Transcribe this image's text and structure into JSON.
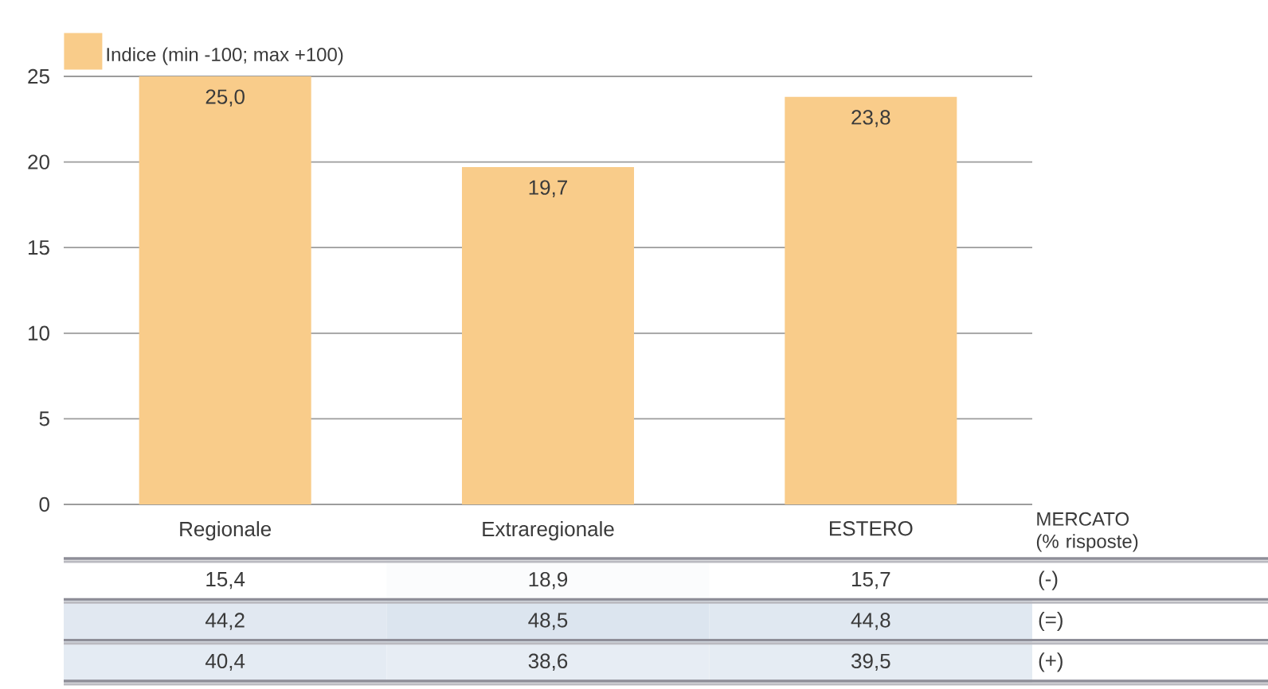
{
  "chart_data": [
    {
      "type": "bar",
      "categories": [
        "Regionale",
        "Extraregionale",
        "ESTERO"
      ],
      "series": [
        {
          "name": "Indice (min -100; max +100)",
          "color": "#f9cc8a",
          "values": [
            25.0,
            19.7,
            23.8
          ],
          "value_labels": [
            "25,0",
            "19,7",
            "23,8"
          ]
        }
      ],
      "ylim": [
        0,
        25
      ],
      "yticks": [
        0,
        5,
        10,
        15,
        20,
        25
      ],
      "grid": "y",
      "legend": "top left"
    },
    {
      "type": "heatmap",
      "ylabel": "MERCATO (% risposte)",
      "categories": [
        null,
        null,
        null
      ],
      "y_categories": [
        "(-)",
        "(=)",
        "(+)"
      ],
      "cells": [
        [
          15.4,
          18.9,
          15.7
        ],
        [
          44.2,
          48.5,
          44.8
        ],
        [
          40.4,
          38.6,
          39.5
        ]
      ],
      "cell_labels": [
        [
          "15,4",
          "18,9",
          "15,7"
        ],
        [
          "44,2",
          "48,5",
          "44,8"
        ],
        [
          "40,4",
          "38,6",
          "39,5"
        ]
      ]
    }
  ]
}
